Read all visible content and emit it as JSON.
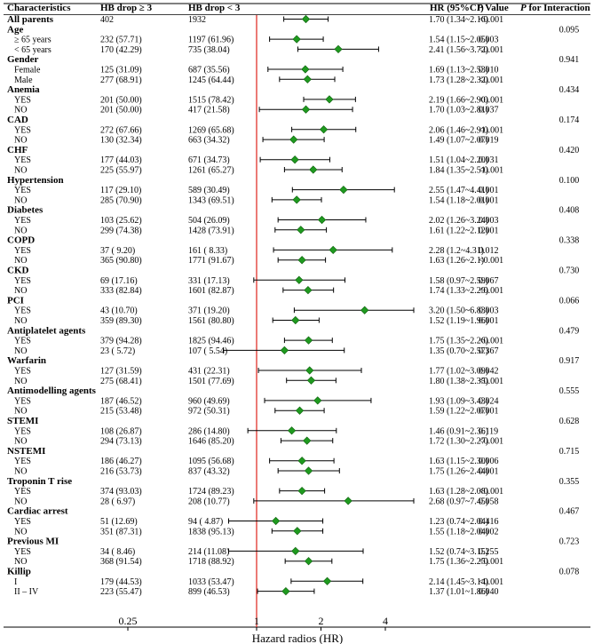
{
  "chart_data": {
    "type": "forest",
    "headers": {
      "characteristics": "Characteristics",
      "hb3": "HB drop ≥ 3",
      "hb_lt3": "HB drop < 3",
      "hr": "HR (95%CI)",
      "p_prefix": "P",
      "p_suffix": " Value",
      "pint_prefix": "P",
      "pint_suffix": " for Interaction"
    },
    "xlabel": "Hazard radios (HR)",
    "x_scale": "log2",
    "xlim": [
      0.25,
      4
    ],
    "ticks": [
      "0.25",
      "1",
      "2",
      "4"
    ],
    "ref_line": 1,
    "rows": [
      {
        "type": "data",
        "bold": true,
        "label": "All parents",
        "hb3": "402",
        "hb_lt3": "1932",
        "hr": 1.7,
        "lo": 1.34,
        "hi": 2.16,
        "hr_text": "1.70 (1.34~2.16)",
        "p": "<0.001",
        "pint": ""
      },
      {
        "type": "header",
        "label": "Age",
        "pint": "0.095"
      },
      {
        "type": "data",
        "label": "≥ 65 years",
        "hb3": "232 (57.71)",
        "hb_lt3": "1197 (61.96)",
        "hr": 1.54,
        "lo": 1.15,
        "hi": 2.05,
        "hr_text": "1.54 (1.15~2.05)",
        "p": "0.003"
      },
      {
        "type": "data",
        "label": "< 65 years",
        "hb3": "170 (42.29)",
        "hb_lt3": "735 (38.04)",
        "hr": 2.41,
        "lo": 1.56,
        "hi": 3.72,
        "hr_text": "2.41 (1.56~3.72)",
        "p": "<0.001"
      },
      {
        "type": "header",
        "label": "Gender",
        "pint": "0.941"
      },
      {
        "type": "data",
        "label": "Female",
        "hb3": "125 (31.09)",
        "hb_lt3": "687 (35.56)",
        "hr": 1.69,
        "lo": 1.13,
        "hi": 2.53,
        "hr_text": "1.69 (1.13~2.53)",
        "p": "0.010"
      },
      {
        "type": "data",
        "label": "Male",
        "hb3": "277 (68.91)",
        "hb_lt3": "1245 (64.44)",
        "hr": 1.73,
        "lo": 1.28,
        "hi": 2.32,
        "hr_text": "1.73 (1.28~2.32)",
        "p": "<0.001"
      },
      {
        "type": "header",
        "label": "Anemia",
        "pint": "0.434"
      },
      {
        "type": "data",
        "label": "YES",
        "hb3": "201 (50.00)",
        "hb_lt3": "1515 (78.42)",
        "hr": 2.19,
        "lo": 1.66,
        "hi": 2.9,
        "hr_text": "2.19 (1.66~2.90)",
        "p": "<0.001"
      },
      {
        "type": "data",
        "label": "NO",
        "hb3": "201 (50.00)",
        "hb_lt3": "417 (21.58)",
        "hr": 1.7,
        "lo": 1.03,
        "hi": 2.81,
        "hr_text": "1.70 (1.03~2.81)",
        "p": "0.037"
      },
      {
        "type": "header",
        "label": "CAD",
        "pint": "0.174"
      },
      {
        "type": "data",
        "label": "YES",
        "hb3": "272 (67.66)",
        "hb_lt3": "1269 (65.68)",
        "hr": 2.06,
        "lo": 1.46,
        "hi": 2.91,
        "hr_text": "2.06 (1.46~2.91)",
        "p": "<0.001"
      },
      {
        "type": "data",
        "label": "NO",
        "hb3": "130 (32.34)",
        "hb_lt3": "663 (34.32)",
        "hr": 1.49,
        "lo": 1.07,
        "hi": 2.07,
        "hr_text": "1.49 (1.07~2.07)",
        "p": "0.019"
      },
      {
        "type": "header",
        "label": "CHF",
        "pint": "0.420"
      },
      {
        "type": "data",
        "label": "YES",
        "hb3": "177 (44.03)",
        "hb_lt3": "671 (34.73)",
        "hr": 1.51,
        "lo": 1.04,
        "hi": 2.2,
        "hr_text": "1.51 (1.04~2.20)",
        "p": "0.031"
      },
      {
        "type": "data",
        "label": "NO",
        "hb3": "225 (55.97)",
        "hb_lt3": "1261 (65.27)",
        "hr": 1.84,
        "lo": 1.35,
        "hi": 2.51,
        "hr_text": "1.84 (1.35~2.51)",
        "p": "<0.001"
      },
      {
        "type": "header",
        "label": "Hypertension",
        "pint": "0.100"
      },
      {
        "type": "data",
        "label": "YES",
        "hb3": "117 (29.10)",
        "hb_lt3": "589 (30.49)",
        "hr": 2.55,
        "lo": 1.47,
        "hi": 4.41,
        "hr_text": "2.55 (1.47~4.41)",
        "p": "0.001"
      },
      {
        "type": "data",
        "label": "NO",
        "hb3": "285 (70.90)",
        "hb_lt3": "1343 (69.51)",
        "hr": 1.54,
        "lo": 1.18,
        "hi": 2.01,
        "hr_text": "1.54 (1.18~2.01)",
        "p": "0.001"
      },
      {
        "type": "header",
        "label": "Diabetes",
        "pint": "0.408"
      },
      {
        "type": "data",
        "label": "YES",
        "hb3": "103 (25.62)",
        "hb_lt3": "504 (26.09)",
        "hr": 2.02,
        "lo": 1.26,
        "hi": 3.24,
        "hr_text": "2.02 (1.26~3.24)",
        "p": "0.003"
      },
      {
        "type": "data",
        "label": "NO",
        "hb3": "299 (74.38)",
        "hb_lt3": "1428 (73.91)",
        "hr": 1.61,
        "lo": 1.22,
        "hi": 2.12,
        "hr_text": "1.61 (1.22~2.12)",
        "p": "0.001"
      },
      {
        "type": "header",
        "label": "COPD",
        "pint": "0.338"
      },
      {
        "type": "data",
        "label": "YES",
        "hb3": "37 ( 9.20)",
        "hb_lt3": "161 ( 8.33)",
        "hr": 2.28,
        "lo": 1.2,
        "hi": 4.31,
        "hr_text": "2.28 (1.2~4.31)",
        "p": "0.012"
      },
      {
        "type": "data",
        "label": "NO",
        "hb3": "365 (90.80)",
        "hb_lt3": "1771 (91.67)",
        "hr": 1.63,
        "lo": 1.26,
        "hi": 2.1,
        "hr_text": "1.63 (1.26~2.1)",
        "p": "<0.001"
      },
      {
        "type": "header",
        "label": "CKD",
        "pint": "0.730"
      },
      {
        "type": "data",
        "label": "YES",
        "hb3": "69 (17.16)",
        "hb_lt3": "331 (17.13)",
        "hr": 1.58,
        "lo": 0.97,
        "hi": 2.59,
        "hr_text": "1.58 (0.97~2.59)",
        "p": "0.067"
      },
      {
        "type": "data",
        "label": "NO",
        "hb3": "333 (82.84)",
        "hb_lt3": "1601 (82.87)",
        "hr": 1.74,
        "lo": 1.33,
        "hi": 2.29,
        "hr_text": "1.74 (1.33~2.29)",
        "p": "<0.001"
      },
      {
        "type": "header",
        "label": "PCI",
        "pint": "0.066"
      },
      {
        "type": "data",
        "label": "YES",
        "hb3": "43 (10.70)",
        "hb_lt3": "371 (19.20)",
        "hr": 3.2,
        "lo": 1.5,
        "hi": 6.83,
        "hr_text": "3.20 (1.50~6.83)",
        "p": "0.003"
      },
      {
        "type": "data",
        "label": "NO",
        "hb3": "359 (89.30)",
        "hb_lt3": "1561 (80.80)",
        "hr": 1.52,
        "lo": 1.19,
        "hi": 1.96,
        "hr_text": "1.52 (1.19~1.96)",
        "p": "0.001"
      },
      {
        "type": "header",
        "label": "Antiplatelet agents",
        "pint": "0.479"
      },
      {
        "type": "data",
        "label": "YES",
        "hb3": "379 (94.28)",
        "hb_lt3": "1825 (94.46)",
        "hr": 1.75,
        "lo": 1.35,
        "hi": 2.26,
        "hr_text": "1.75 (1.35~2.26)",
        "p": "<0.001"
      },
      {
        "type": "data",
        "label": "NO",
        "hb3": "23 ( 5.72)",
        "hb_lt3": "107 ( 5.54)",
        "hr": 1.35,
        "lo": 0.7,
        "hi": 2.57,
        "hr_text": "1.35 (0.70~2.57)",
        "p": "0.367"
      },
      {
        "type": "header",
        "label": "Warfarin",
        "pint": "0.917"
      },
      {
        "type": "data",
        "label": "YES",
        "hb3": "127 (31.59)",
        "hb_lt3": "431 (22.31)",
        "hr": 1.77,
        "lo": 1.02,
        "hi": 3.09,
        "hr_text": "1.77 (1.02~3.09)",
        "p": "0.042"
      },
      {
        "type": "data",
        "label": "NO",
        "hb3": "275 (68.41)",
        "hb_lt3": "1501 (77.69)",
        "hr": 1.8,
        "lo": 1.38,
        "hi": 2.35,
        "hr_text": "1.80 (1.38~2.35)",
        "p": "<0.001"
      },
      {
        "type": "header",
        "label": "Antimodelling agents",
        "pint": "0.555"
      },
      {
        "type": "data",
        "label": "YES",
        "hb3": "187 (46.52)",
        "hb_lt3": "960 (49.69)",
        "hr": 1.93,
        "lo": 1.09,
        "hi": 3.43,
        "hr_text": "1.93 (1.09~3.43)",
        "p": "0.024"
      },
      {
        "type": "data",
        "label": "NO",
        "hb3": "215 (53.48)",
        "hb_lt3": "972 (50.31)",
        "hr": 1.59,
        "lo": 1.22,
        "hi": 2.07,
        "hr_text": "1.59 (1.22~2.07)",
        "p": "0.001"
      },
      {
        "type": "header",
        "label": "STEMI",
        "pint": "0.628"
      },
      {
        "type": "data",
        "label": "YES",
        "hb3": "108 (26.87)",
        "hb_lt3": "286 (14.80)",
        "hr": 1.46,
        "lo": 0.91,
        "hi": 2.36,
        "hr_text": "1.46 (0.91~2.36)",
        "p": "0.119"
      },
      {
        "type": "data",
        "label": "NO",
        "hb3": "294 (73.13)",
        "hb_lt3": "1646 (85.20)",
        "hr": 1.72,
        "lo": 1.3,
        "hi": 2.27,
        "hr_text": "1.72 (1.30~2.27)",
        "p": "<0.001"
      },
      {
        "type": "header",
        "label": "NSTEMI",
        "pint": "0.715"
      },
      {
        "type": "data",
        "label": "YES",
        "hb3": "186 (46.27)",
        "hb_lt3": "1095 (56.68)",
        "hr": 1.63,
        "lo": 1.15,
        "hi": 2.3,
        "hr_text": "1.63 (1.15~2.30)",
        "p": "0.006"
      },
      {
        "type": "data",
        "label": "NO",
        "hb3": "216 (53.73)",
        "hb_lt3": "837 (43.32)",
        "hr": 1.75,
        "lo": 1.26,
        "hi": 2.44,
        "hr_text": "1.75 (1.26~2.44)",
        "p": "0.001"
      },
      {
        "type": "header",
        "label": "Troponin T rise",
        "pint": "0.355"
      },
      {
        "type": "data",
        "label": "YES",
        "hb3": "374 (93.03)",
        "hb_lt3": "1724 (89.23)",
        "hr": 1.63,
        "lo": 1.28,
        "hi": 2.08,
        "hr_text": "1.63 (1.28~2.08)",
        "p": "<0.001"
      },
      {
        "type": "data",
        "label": "NO",
        "hb3": "28 ( 6.97)",
        "hb_lt3": "208 (10.77)",
        "hr": 2.68,
        "lo": 0.97,
        "hi": 7.45,
        "hr_text": "2.68 (0.97~7.45)",
        "p": "0.058"
      },
      {
        "type": "header",
        "label": "Cardiac arrest",
        "pint": "0.467"
      },
      {
        "type": "data",
        "label": "YES",
        "hb3": "51 (12.69)",
        "hb_lt3": "94 ( 4.87)",
        "hr": 1.23,
        "lo": 0.74,
        "hi": 2.04,
        "hr_text": "1.23 (0.74~2.04)",
        "p": "0.416"
      },
      {
        "type": "data",
        "label": "NO",
        "hb3": "351 (87.31)",
        "hb_lt3": "1838 (95.13)",
        "hr": 1.55,
        "lo": 1.18,
        "hi": 2.04,
        "hr_text": "1.55 (1.18~2.04)",
        "p": "0.002"
      },
      {
        "type": "header",
        "label": "Previous MI",
        "pint": "0.723"
      },
      {
        "type": "data",
        "label": "YES",
        "hb3": "34 ( 8.46)",
        "hb_lt3": "214 (11.08)",
        "hr": 1.52,
        "lo": 0.74,
        "hi": 3.15,
        "hr_text": "1.52 (0.74~3.15)",
        "p": "0.255"
      },
      {
        "type": "data",
        "label": "NO",
        "hb3": "368 (91.54)",
        "hb_lt3": "1718 (88.92)",
        "hr": 1.75,
        "lo": 1.36,
        "hi": 2.25,
        "hr_text": "1.75 (1.36~2.25)",
        "p": "<0.001"
      },
      {
        "type": "header",
        "label": "Killip",
        "pint": "0.078"
      },
      {
        "type": "data",
        "label": "I",
        "hb3": "179 (44.53)",
        "hb_lt3": "1033 (53.47)",
        "hr": 2.14,
        "lo": 1.45,
        "hi": 3.14,
        "hr_text": "2.14 (1.45~3.14)",
        "p": "<0.001"
      },
      {
        "type": "data",
        "label": "II – IV",
        "hb3": "223 (55.47)",
        "hb_lt3": "899 (46.53)",
        "hr": 1.37,
        "lo": 1.01,
        "hi": 1.86,
        "hr_text": "1.37 (1.01~1.86)",
        "p": "0.040"
      }
    ],
    "colors": {
      "marker": "#1f9a1f",
      "marker_edge": "#0d5e0d",
      "ref_line": "#e0342d",
      "ci_line": "#000000",
      "rule": "#000000"
    }
  }
}
